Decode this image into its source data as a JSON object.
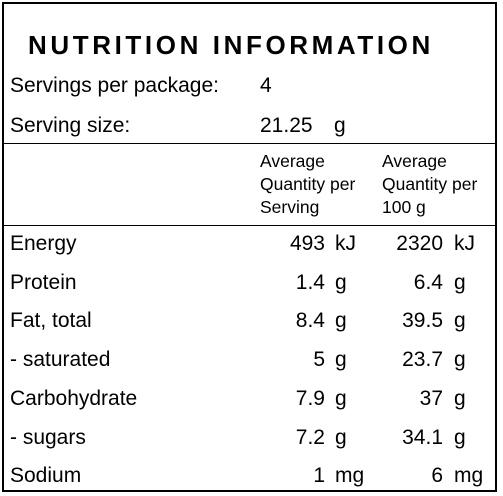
{
  "title": "NUTRITION INFORMATION",
  "servings_per_package_label": "Servings per package:",
  "servings_per_package_value": "4",
  "serving_size_label": "Serving size:",
  "serving_size_value": "21.25",
  "serving_size_unit": "g",
  "col_headers": {
    "per_serving": "Average\nQuantity per\nServing",
    "per_100g": "Average\nQuantity per\n100 g"
  },
  "rows": [
    {
      "name": "Energy",
      "serving": "493",
      "serving_unit": "kJ",
      "per100": "2320",
      "per100_unit": "kJ"
    },
    {
      "name": "Protein",
      "serving": "1.4",
      "serving_unit": "g",
      "per100": "6.4",
      "per100_unit": "g"
    },
    {
      "name": "Fat, total",
      "serving": "8.4",
      "serving_unit": "g",
      "per100": "39.5",
      "per100_unit": "g"
    },
    {
      "name": "- saturated",
      "serving": "5",
      "serving_unit": "g",
      "per100": "23.7",
      "per100_unit": "g"
    },
    {
      "name": "Carbohydrate",
      "serving": "7.9",
      "serving_unit": "g",
      "per100": "37",
      "per100_unit": "g"
    },
    {
      "name": "- sugars",
      "serving": "7.2",
      "serving_unit": "g",
      "per100": "34.1",
      "per100_unit": "g"
    },
    {
      "name": "Sodium",
      "serving": "1",
      "serving_unit": "mg",
      "per100": "6",
      "per100_unit": "mg"
    }
  ]
}
